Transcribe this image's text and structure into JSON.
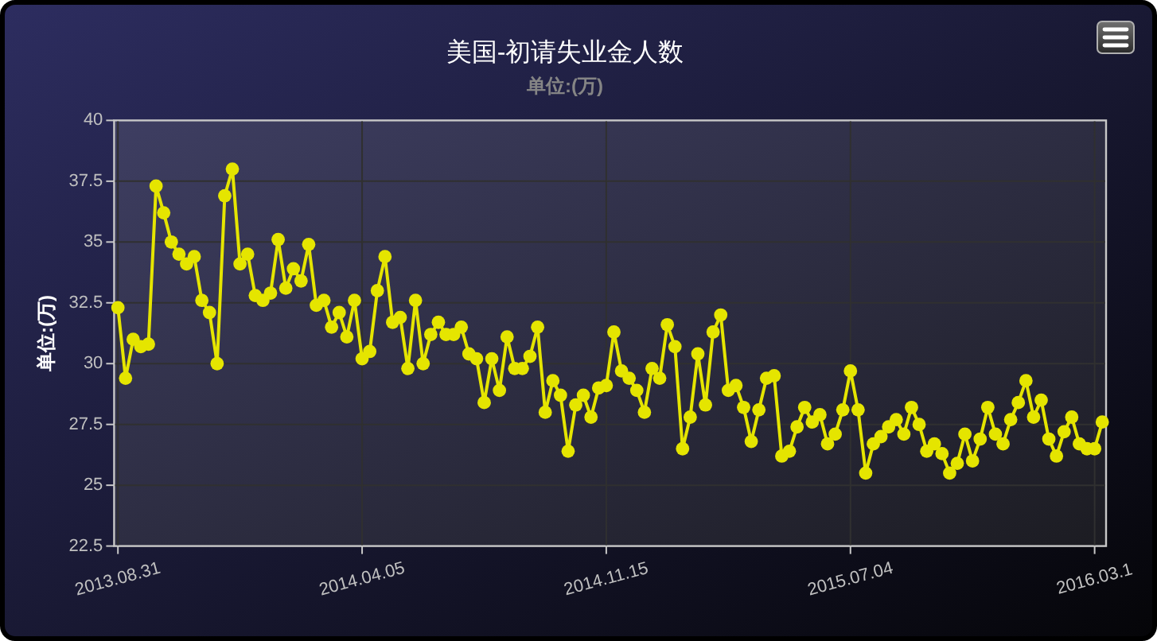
{
  "chart_data": {
    "type": "line",
    "title": "美国-初请失业金人数",
    "subtitle": "单位:(万)",
    "ylabel": "单位:(万)",
    "categories": [
      "2013.08.31",
      null,
      null,
      null,
      null,
      null,
      null,
      null,
      null,
      null,
      null,
      null,
      null,
      null,
      null,
      null,
      null,
      null,
      null,
      null,
      null,
      null,
      null,
      null,
      null,
      null,
      null,
      null,
      null,
      null,
      null,
      null,
      "2014.04.05",
      null,
      null,
      null,
      null,
      null,
      null,
      null,
      null,
      null,
      null,
      null,
      null,
      null,
      null,
      null,
      null,
      null,
      null,
      null,
      null,
      null,
      null,
      null,
      null,
      null,
      null,
      null,
      null,
      null,
      null,
      null,
      "2014.11.15",
      null,
      null,
      null,
      null,
      null,
      null,
      null,
      null,
      null,
      null,
      null,
      null,
      null,
      null,
      null,
      null,
      null,
      null,
      null,
      null,
      null,
      null,
      null,
      null,
      null,
      null,
      null,
      null,
      null,
      null,
      null,
      "2015.07.04",
      null,
      null,
      null,
      null,
      null,
      null,
      null,
      null,
      null,
      null,
      null,
      null,
      null,
      null,
      null,
      null,
      null,
      null,
      null,
      null,
      null,
      null,
      null,
      null,
      null,
      null,
      null,
      null,
      null,
      null,
      null,
      "2016.03.1",
      null
    ],
    "values": [
      32.3,
      29.4,
      31.0,
      30.7,
      30.8,
      37.3,
      36.2,
      35.0,
      34.5,
      34.1,
      34.4,
      32.6,
      32.1,
      30.0,
      36.9,
      38.0,
      34.1,
      34.5,
      32.8,
      32.6,
      32.9,
      35.1,
      33.1,
      33.9,
      33.4,
      34.9,
      32.4,
      32.6,
      31.5,
      32.1,
      31.1,
      32.6,
      30.2,
      30.5,
      33.0,
      34.4,
      31.7,
      31.9,
      29.8,
      32.6,
      30.0,
      31.2,
      31.7,
      31.2,
      31.2,
      31.5,
      30.4,
      30.2,
      28.4,
      30.2,
      28.9,
      31.1,
      29.8,
      29.8,
      30.3,
      31.5,
      28.0,
      29.3,
      28.7,
      26.4,
      28.3,
      28.7,
      27.8,
      29.0,
      29.1,
      31.3,
      29.7,
      29.4,
      28.9,
      28.0,
      29.8,
      29.4,
      31.6,
      30.7,
      26.5,
      27.8,
      30.4,
      28.3,
      31.3,
      32.0,
      28.9,
      29.1,
      28.2,
      26.8,
      28.1,
      29.4,
      29.5,
      26.2,
      26.4,
      27.4,
      28.2,
      27.6,
      27.9,
      26.7,
      27.1,
      28.1,
      29.7,
      28.1,
      25.5,
      26.7,
      27.0,
      27.4,
      27.7,
      27.1,
      28.2,
      27.5,
      26.4,
      26.7,
      26.3,
      25.5,
      25.9,
      27.1,
      26.0,
      26.9,
      28.2,
      27.1,
      26.7,
      27.7,
      28.4,
      29.3,
      27.8,
      28.5,
      26.9,
      26.2,
      27.2,
      27.8,
      26.7,
      26.5,
      26.5,
      27.6
    ],
    "color": "#e5e500",
    "ylim": [
      22.5,
      40
    ],
    "yticks": [
      22.5,
      25,
      27.5,
      30,
      32.5,
      35,
      37.5,
      40
    ],
    "grid": true,
    "marker": "circle"
  }
}
